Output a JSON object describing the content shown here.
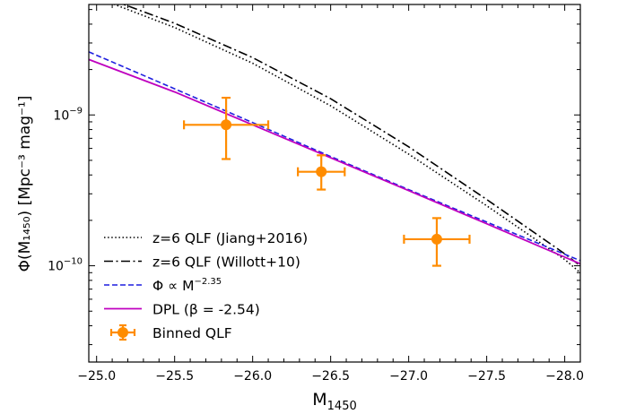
{
  "chart_data": {
    "type": "line",
    "xlabel": "M",
    "xlabel_sub": "1450",
    "ylabel": "Φ(M₁₄₅₀) [Mpc⁻³ mag⁻¹]",
    "x_axis_inverted": true,
    "xlim": [
      -24.95,
      -28.1
    ],
    "ylog": true,
    "ylim": [
      2.3e-11,
      5.4e-09
    ],
    "x_ticks": [
      -25.0,
      -25.5,
      -26.0,
      -26.5,
      -27.0,
      -27.5,
      -28.0
    ],
    "x_tick_labels": [
      "−25.0",
      "−25.5",
      "−26.0",
      "−26.5",
      "−27.0",
      "−27.5",
      "−28.0"
    ],
    "y_major_ticks": [
      1e-10,
      1e-09
    ],
    "y_tick_labels": [
      {
        "base": "10",
        "exp": "−9",
        "value": 1e-09
      },
      {
        "base": "10",
        "exp": "−10",
        "value": 1e-10
      }
    ],
    "legend_position": "lower-left",
    "series": [
      {
        "name": "z=6 QLF (Jiang+2016)",
        "kind": "line",
        "color": "#000000",
        "dash": "dotted",
        "x": [
          -25.0,
          -25.5,
          -26.0,
          -26.5,
          -27.0,
          -27.5,
          -28.0,
          -28.1
        ],
        "y": [
          6e-09,
          3.8e-09,
          2.2e-09,
          1.15e-09,
          5.5e-10,
          2.5e-10,
          1.1e-10,
          9e-11
        ]
      },
      {
        "name": "z=6 QLF (Willott+10)",
        "kind": "line",
        "color": "#000000",
        "dash": "dashdot",
        "x": [
          -25.0,
          -25.5,
          -26.0,
          -26.5,
          -27.0,
          -27.5,
          -28.0,
          -28.1
        ],
        "y": [
          6.3e-09,
          4.05e-09,
          2.4e-09,
          1.28e-09,
          6.15e-10,
          2.75e-10,
          1.2e-10,
          1e-10
        ]
      },
      {
        "name": "Φ ∝ M",
        "name_exp": "−2.35",
        "kind": "line",
        "color": "#1f1fdf",
        "dash": "dashed",
        "x": [
          -24.95,
          -25.5,
          -26.0,
          -26.5,
          -27.0,
          -27.5,
          -28.1
        ],
        "y": [
          2.62e-09,
          1.49e-09,
          8.9e-10,
          5.3e-10,
          3.2e-10,
          1.95e-10,
          1.08e-10
        ]
      },
      {
        "name": "DPL (β = -2.54)",
        "kind": "line",
        "color": "#bf00bf",
        "dash": "solid",
        "x": [
          -24.95,
          -25.5,
          -26.0,
          -26.5,
          -27.0,
          -27.5,
          -28.1
        ],
        "y": [
          2.33e-09,
          1.42e-09,
          8.6e-10,
          5.2e-10,
          3.15e-10,
          1.9e-10,
          1.03e-10
        ]
      },
      {
        "name": "Binned QLF",
        "kind": "errorbar",
        "color": "#ff8c00",
        "points": [
          {
            "x": -25.83,
            "y": 8.6e-10,
            "xerr": 0.27,
            "y_low": 5.1e-10,
            "y_high": 1.3e-09
          },
          {
            "x": -26.44,
            "y": 4.2e-10,
            "xerr": 0.15,
            "y_low": 3.2e-10,
            "y_high": 5.4e-10
          },
          {
            "x": -27.18,
            "y": 1.5e-10,
            "xerr": 0.21,
            "y_low": 1e-10,
            "y_high": 2.07e-10
          }
        ]
      }
    ]
  }
}
